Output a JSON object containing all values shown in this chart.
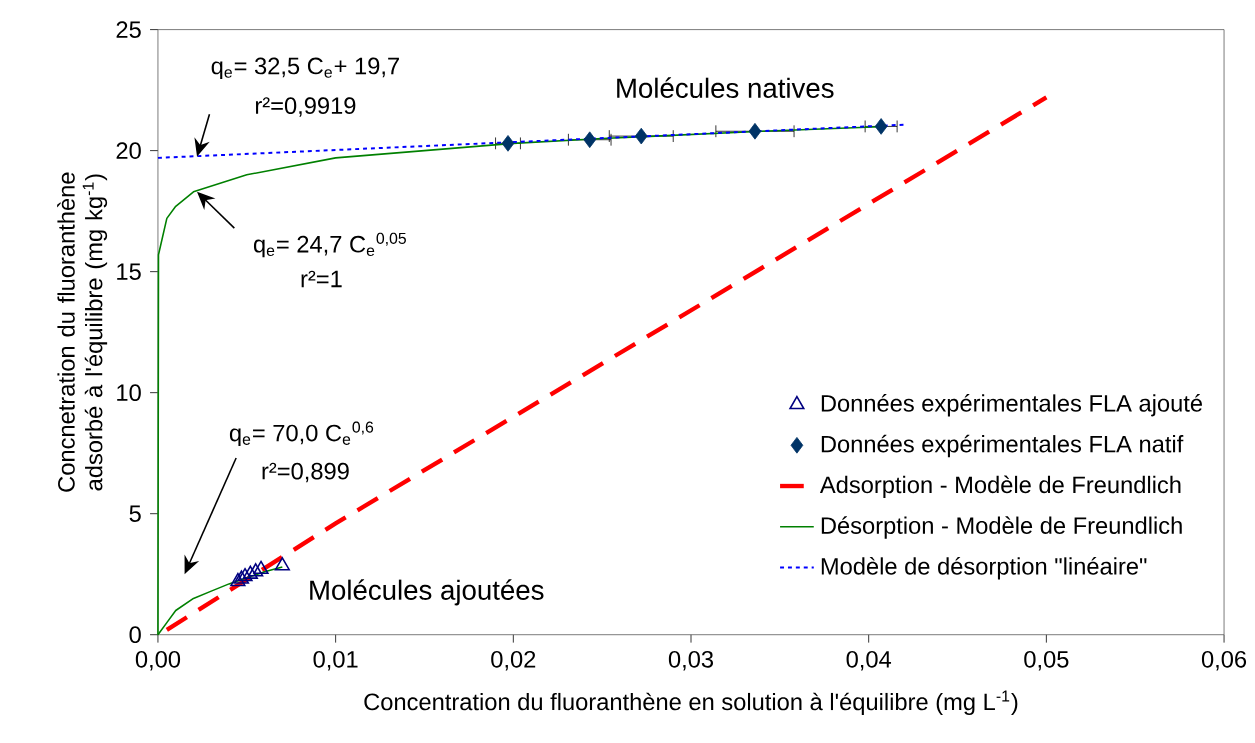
{
  "chart_data": {
    "type": "line",
    "xlabel": "Concentration du fluoranthène en solution à l'équilibre (mg L$^{-1}$)",
    "ylabel": "Concnetration du fluoranthène adsorbé à l'équilibre (mg kg$^{-1}$)",
    "xlim": [
      0,
      0.06
    ],
    "ylim": [
      0,
      25
    ],
    "xticks": [
      {
        "value": 0,
        "label": "0,00"
      },
      {
        "value": 0.01,
        "label": "0,01"
      },
      {
        "value": 0.02,
        "label": "0,02"
      },
      {
        "value": 0.03,
        "label": "0,03"
      },
      {
        "value": 0.04,
        "label": "0,04"
      },
      {
        "value": 0.05,
        "label": "0,05"
      },
      {
        "value": 0.06,
        "label": "0,06"
      }
    ],
    "yticks": [
      0,
      5,
      10,
      15,
      20,
      25
    ],
    "grid": false,
    "legend": "bottom right",
    "series": [
      {
        "name": "Données expérimentales FLA ajouté",
        "type": "scatter",
        "marker": "triangle",
        "color": "#000080",
        "x": [
          0.0045,
          0.0047,
          0.0049,
          0.0052,
          0.0055,
          0.0058,
          0.007
        ],
        "values": [
          2.2,
          2.3,
          2.4,
          2.5,
          2.6,
          2.7,
          2.85
        ]
      },
      {
        "name": "Données expérimentales FLA natif",
        "type": "scatter",
        "marker": "diamond",
        "color": "#003366",
        "x": [
          0.0197,
          0.0243,
          0.0272,
          0.0336,
          0.0407
        ],
        "values": [
          20.3,
          20.45,
          20.6,
          20.8,
          21.0
        ],
        "xerrors": [
          0.0007,
          0.0012,
          0.0018,
          0.0022,
          0.0009
        ]
      },
      {
        "name": "Adsorption - Modèle de Freundlich",
        "line_style": "dashed",
        "color": "#ff0000",
        "x": [
          0.0005,
          0.01,
          0.02,
          0.03,
          0.04,
          0.05
        ],
        "values": [
          0.2,
          4.6,
          9.0,
          13.4,
          17.8,
          22.2
        ]
      },
      {
        "name": "Désorption - Modèle de Freundlich",
        "line_style": "solid",
        "color": "#008000",
        "x": [
          0,
          3e-05,
          0.0005,
          0.001,
          0.002,
          0.005,
          0.01,
          0.02,
          0.025,
          0.028,
          0.034,
          0.041
        ],
        "values": [
          0,
          15.7,
          17.2,
          17.7,
          18.3,
          19.0,
          19.7,
          20.3,
          20.5,
          20.6,
          20.8,
          21.0
        ]
      },
      {
        "line_style": "solid",
        "color": "#008000",
        "x": [
          0,
          0.0005,
          0.001,
          0.002,
          0.003,
          0.004,
          0.005,
          0.006,
          0.007
        ],
        "values": [
          0,
          0.5,
          1.0,
          1.5,
          1.8,
          2.1,
          2.35,
          2.6,
          2.8
        ]
      },
      {
        "name": "Modèle de désorption \"linéaire\"",
        "line_style": "dotted",
        "color": "#0000ff",
        "x": [
          0,
          0.042
        ],
        "values": [
          19.7,
          21.07
        ]
      }
    ],
    "annotations": [
      "q$_{e}$= 32,5 C$_{e}$+ 19,7",
      "r²=0,9919",
      {
        "text": "q$_{e}$= 24,7 C$_{e}$$^{0,05}$",
        "x": 0.0022,
        "y": 18.3
      },
      "r²=1",
      "q$_{e}$= 70,0 C$_{e}$$^{0,6}$",
      "r²=0,899",
      "Molécules natives",
      "Molécules ajoutées"
    ]
  }
}
